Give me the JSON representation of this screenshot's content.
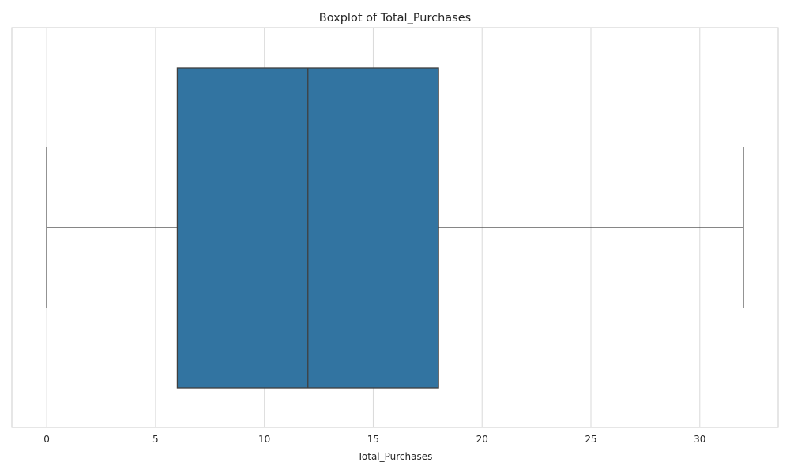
{
  "chart_data": {
    "type": "box",
    "title": "Boxplot of Total_Purchases",
    "xlabel": "Total_Purchases",
    "ylabel": "",
    "orientation": "horizontal",
    "xlim": [
      -1.6,
      33.6
    ],
    "x_ticks": [
      0,
      5,
      10,
      15,
      20,
      25,
      30
    ],
    "x_tick_labels": [
      "0",
      "5",
      "10",
      "15",
      "20",
      "25",
      "30"
    ],
    "grid": "vertical",
    "stats": {
      "whisker_low": 0,
      "q1": 6,
      "median": 12,
      "q3": 18,
      "whisker_high": 32
    },
    "colors": {
      "box_fill": "#3274a1",
      "line": "#3f3f3f",
      "grid": "#d9d9d9",
      "spine": "#cccccc"
    }
  }
}
